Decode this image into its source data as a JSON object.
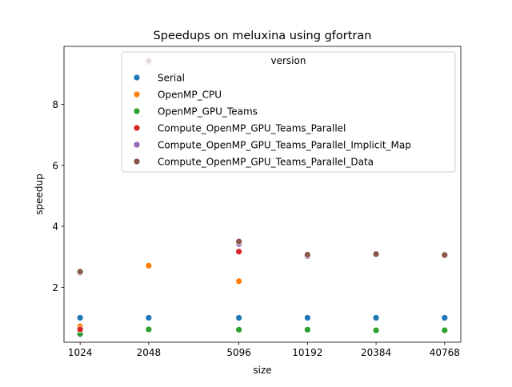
{
  "chart_data": {
    "type": "scatter",
    "title": "Speedups on meluxina using gfortran",
    "xlabel": "size",
    "ylabel": "speedup",
    "x_scale": "log2",
    "x_ticks": [
      1024,
      2048,
      5096,
      10192,
      20384,
      40768
    ],
    "xlim": [
      870,
      48000
    ],
    "ylim": [
      0.2,
      9.9
    ],
    "y_ticks": [
      2,
      4,
      6,
      8
    ],
    "grid": false,
    "legend": {
      "title": "version",
      "placement": "top-center"
    },
    "series": [
      {
        "name": "Serial",
        "color": "#1f77b4",
        "points": [
          [
            1024,
            1.0
          ],
          [
            2048,
            1.0
          ],
          [
            5096,
            1.0
          ],
          [
            10192,
            1.0
          ],
          [
            20384,
            1.0
          ],
          [
            40768,
            1.0
          ]
        ]
      },
      {
        "name": "OpenMP_CPU",
        "color": "#ff7f0e",
        "points": [
          [
            1024,
            0.72
          ],
          [
            2048,
            2.71
          ],
          [
            5096,
            2.2
          ]
        ]
      },
      {
        "name": "OpenMP_GPU_Teams",
        "color": "#2ca02c",
        "points": [
          [
            1024,
            0.47
          ],
          [
            2048,
            0.62
          ],
          [
            5096,
            0.61
          ],
          [
            10192,
            0.61
          ],
          [
            20384,
            0.59
          ],
          [
            40768,
            0.59
          ]
        ]
      },
      {
        "name": "Compute_OpenMP_GPU_Teams_Parallel",
        "color": "#d62728",
        "points": [
          [
            1024,
            0.62
          ],
          [
            5096,
            3.17
          ]
        ]
      },
      {
        "name": "Compute_OpenMP_GPU_Teams_Parallel_Implicit_Map",
        "color": "#9467bd",
        "points": [
          [
            1024,
            2.48
          ],
          [
            2048,
            9.38
          ],
          [
            5096,
            3.42
          ],
          [
            10192,
            3.02
          ],
          [
            20384,
            3.1
          ],
          [
            40768,
            3.05
          ]
        ]
      },
      {
        "name": "Compute_OpenMP_GPU_Teams_Parallel_Data",
        "color": "#8c564b",
        "points": [
          [
            1024,
            2.51
          ],
          [
            2048,
            9.42
          ],
          [
            5096,
            3.5
          ],
          [
            10192,
            3.07
          ],
          [
            20384,
            3.09
          ],
          [
            40768,
            3.06
          ]
        ]
      }
    ]
  }
}
